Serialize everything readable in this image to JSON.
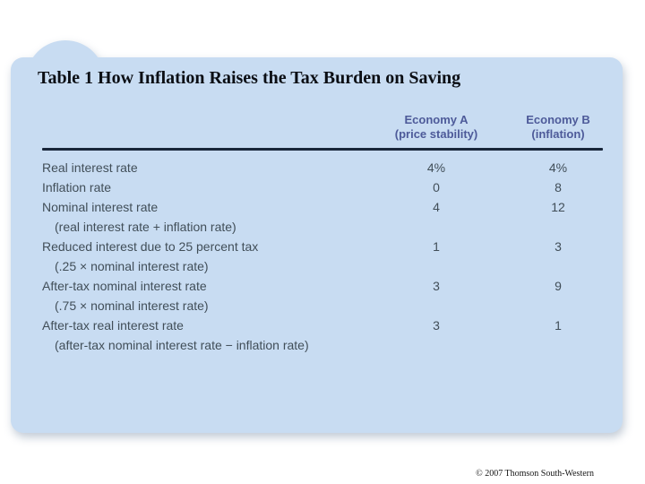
{
  "slide": {
    "title": "Table 1 How Inflation Raises the Tax Burden on Saving",
    "copyright": "© 2007 Thomson South-Western"
  },
  "colors": {
    "card_background": "#c8dcf2",
    "header_text": "#4d5a99",
    "body_text": "#414e58",
    "rule": "#18263a",
    "title_text": "#0b0e14",
    "page_background": "#ffffff"
  },
  "chart_data": {
    "type": "table",
    "title": "Table 1 How Inflation Raises the Tax Burden on Saving",
    "columns": [
      {
        "line1": "Economy A",
        "line2": "(price stability)"
      },
      {
        "line1": "Economy B",
        "line2": "(inflation)"
      }
    ],
    "rows": [
      {
        "label": "Real interest rate",
        "indent": false,
        "a": "4%",
        "b": "4%"
      },
      {
        "label": "Inflation rate",
        "indent": false,
        "a": "0",
        "b": "8"
      },
      {
        "label": "Nominal interest rate",
        "indent": false,
        "a": "4",
        "b": "12"
      },
      {
        "label": "(real interest rate + inflation rate)",
        "indent": true,
        "a": "",
        "b": ""
      },
      {
        "label": "Reduced interest due to 25 percent tax",
        "indent": false,
        "a": "1",
        "b": "3"
      },
      {
        "label": "(.25 × nominal interest rate)",
        "indent": true,
        "a": "",
        "b": ""
      },
      {
        "label": "After-tax nominal interest rate",
        "indent": false,
        "a": "3",
        "b": "9"
      },
      {
        "label": "(.75 × nominal interest rate)",
        "indent": true,
        "a": "",
        "b": ""
      },
      {
        "label": "After-tax real interest rate",
        "indent": false,
        "a": "3",
        "b": "1"
      },
      {
        "label": "(after-tax nominal interest rate − inflation rate)",
        "indent": true,
        "a": "",
        "b": ""
      }
    ]
  }
}
